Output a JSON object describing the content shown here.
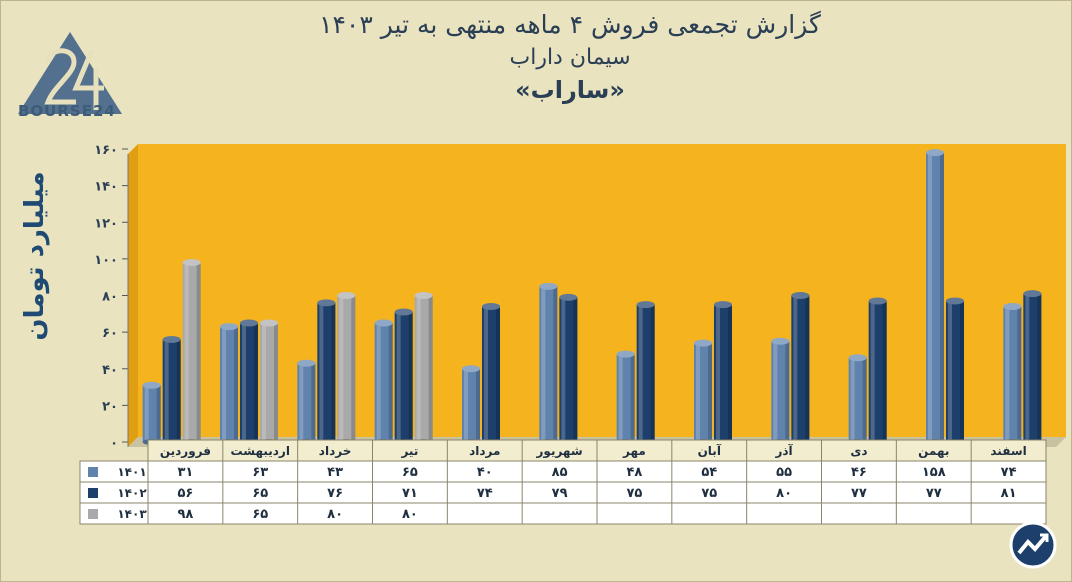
{
  "header": {
    "title_line1": "گزارش تجمعی فروش ۴ ماهه منتهی به تیر ۱۴۰۳",
    "title_line2": "سیمان داراب",
    "title_line3": "«ساراب»"
  },
  "logo": {
    "text": "BOURSE24",
    "icon": "bourse24-logo-icon"
  },
  "corner_icon": "growth-trend-icon",
  "chart_data": {
    "type": "bar",
    "ylabel": "میلیارد تومان",
    "ylim": [
      0,
      160
    ],
    "yticks": [
      "۰",
      "۲۰",
      "۴۰",
      "۶۰",
      "۸۰",
      "۱۰۰",
      "۱۲۰",
      "۱۴۰",
      "۱۶۰"
    ],
    "grid": false,
    "categories": [
      "فروردین",
      "اردیبهشت",
      "خرداد",
      "تیر",
      "مرداد",
      "شهریور",
      "مهر",
      "آبان",
      "آذر",
      "دی",
      "بهمن",
      "اسفند"
    ],
    "series": [
      {
        "name": "۱۴۰۱",
        "color": "#5f83ad",
        "values": [
          31,
          63,
          43,
          65,
          40,
          85,
          48,
          54,
          55,
          46,
          158,
          74
        ],
        "labels": [
          "۳۱",
          "۶۳",
          "۴۳",
          "۶۵",
          "۴۰",
          "۸۵",
          "۴۸",
          "۵۴",
          "۵۵",
          "۴۶",
          "۱۵۸",
          "۷۴"
        ]
      },
      {
        "name": "۱۴۰۲",
        "color": "#1d3f6b",
        "values": [
          56,
          65,
          76,
          71,
          74,
          79,
          75,
          75,
          80,
          77,
          77,
          81
        ],
        "labels": [
          "۵۶",
          "۶۵",
          "۷۶",
          "۷۱",
          "۷۴",
          "۷۹",
          "۷۵",
          "۷۵",
          "۸۰",
          "۷۷",
          "۷۷",
          "۸۱"
        ]
      },
      {
        "name": "۱۴۰۳",
        "color": "#a9a9a9",
        "values": [
          98,
          65,
          80,
          80,
          null,
          null,
          null,
          null,
          null,
          null,
          null,
          null
        ],
        "labels": [
          "۹۸",
          "۶۵",
          "۸۰",
          "۸۰",
          "",
          "",
          "",
          "",
          "",
          "",
          "",
          ""
        ]
      }
    ],
    "plot_background": "#f5b31d",
    "page_background": "#eae3bf"
  }
}
